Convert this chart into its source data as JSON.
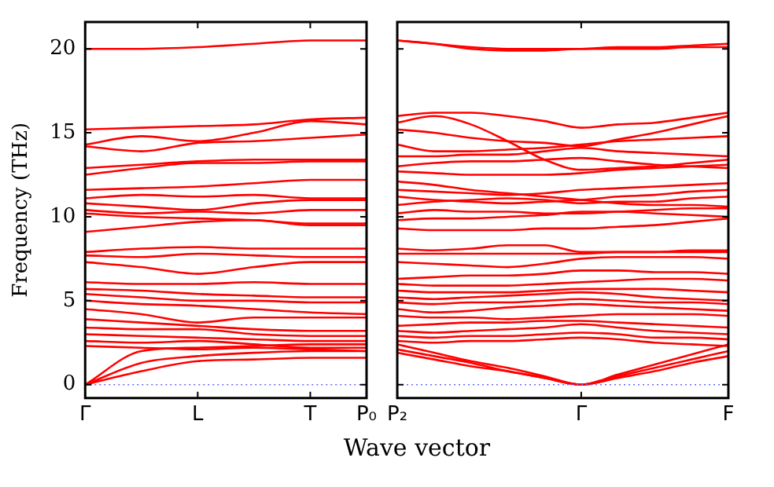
{
  "chart_data": [
    {
      "type": "line",
      "ylabel": "Frequency (THz)",
      "xlabel": "Wave vector",
      "categories": [
        "Γ",
        null,
        "L",
        null,
        "T",
        "P₀"
      ],
      "ylim": [
        -0.8,
        21.6
      ],
      "yticks": [
        0,
        5,
        10,
        15,
        20
      ],
      "grid": false,
      "legend": false,
      "marker": "none",
      "line_style": "solid",
      "ref_lines": [
        {
          "axis": "y",
          "value": 0,
          "color": "#6666ff",
          "line_style": "dotted"
        }
      ],
      "series": [
        {
          "color": "#ff0000",
          "values": [
            20.0,
            20.0,
            20.1,
            20.3,
            20.5,
            20.5
          ]
        },
        {
          "color": "#ff0000",
          "values": [
            15.2,
            15.3,
            15.4,
            15.5,
            15.8,
            15.9
          ]
        },
        {
          "color": "#ff0000",
          "values": [
            14.3,
            14.8,
            14.5,
            15.0,
            15.7,
            15.5
          ]
        },
        {
          "color": "#ff0000",
          "values": [
            14.2,
            13.9,
            14.4,
            14.5,
            14.7,
            14.9
          ]
        },
        {
          "color": "#ff0000",
          "values": [
            12.9,
            13.1,
            13.3,
            13.4,
            13.4,
            13.4
          ]
        },
        {
          "color": "#ff0000",
          "values": [
            12.5,
            12.9,
            13.2,
            13.2,
            13.3,
            13.3
          ]
        },
        {
          "color": "#ff0000",
          "values": [
            11.6,
            11.7,
            11.8,
            12.0,
            12.2,
            12.2
          ]
        },
        {
          "color": "#ff0000",
          "values": [
            11.1,
            11.3,
            11.2,
            11.3,
            11.1,
            11.1
          ]
        },
        {
          "color": "#ff0000",
          "values": [
            10.8,
            10.6,
            10.4,
            10.8,
            11.0,
            11.0
          ]
        },
        {
          "color": "#ff0000",
          "values": [
            10.4,
            10.2,
            10.3,
            10.2,
            10.4,
            10.4
          ]
        },
        {
          "color": "#ff0000",
          "values": [
            10.2,
            10.0,
            9.9,
            9.8,
            9.6,
            9.6
          ]
        },
        {
          "color": "#ff0000",
          "values": [
            9.1,
            9.4,
            9.7,
            9.8,
            9.5,
            9.5
          ]
        },
        {
          "color": "#ff0000",
          "values": [
            7.9,
            8.1,
            8.2,
            8.1,
            8.1,
            8.1
          ]
        },
        {
          "color": "#ff0000",
          "values": [
            7.7,
            7.6,
            7.8,
            7.7,
            7.6,
            7.6
          ]
        },
        {
          "color": "#ff0000",
          "values": [
            7.3,
            7.0,
            6.6,
            7.0,
            7.3,
            7.3
          ]
        },
        {
          "color": "#ff0000",
          "values": [
            6.1,
            6.0,
            6.0,
            6.1,
            6.0,
            6.0
          ]
        },
        {
          "color": "#ff0000",
          "values": [
            5.7,
            5.6,
            5.4,
            5.3,
            5.2,
            5.2
          ]
        },
        {
          "color": "#ff0000",
          "values": [
            5.4,
            5.2,
            5.0,
            5.0,
            4.9,
            4.9
          ]
        },
        {
          "color": "#ff0000",
          "values": [
            5.0,
            4.8,
            4.7,
            4.5,
            4.3,
            4.2
          ]
        },
        {
          "color": "#ff0000",
          "values": [
            4.5,
            4.2,
            3.7,
            4.0,
            4.0,
            4.0
          ]
        },
        {
          "color": "#ff0000",
          "values": [
            3.9,
            3.7,
            3.5,
            3.3,
            3.2,
            3.2
          ]
        },
        {
          "color": "#ff0000",
          "values": [
            3.4,
            3.3,
            3.3,
            3.0,
            2.9,
            2.9
          ]
        },
        {
          "color": "#ff0000",
          "values": [
            3.0,
            2.9,
            2.8,
            2.7,
            2.6,
            2.6
          ]
        },
        {
          "color": "#ff0000",
          "values": [
            2.6,
            2.5,
            2.6,
            2.4,
            2.2,
            2.2
          ]
        },
        {
          "color": "#ff0000",
          "values": [
            2.3,
            2.2,
            2.1,
            2.2,
            2.1,
            2.0
          ]
        },
        {
          "color": "#ff0000",
          "values": [
            0,
            2.0,
            2.2,
            2.3,
            2.4,
            2.4
          ]
        },
        {
          "color": "#ff0000",
          "values": [
            0,
            1.3,
            1.7,
            1.9,
            2.0,
            2.0
          ]
        },
        {
          "color": "#ff0000",
          "values": [
            0,
            0.8,
            1.4,
            1.5,
            1.6,
            1.6
          ]
        }
      ]
    },
    {
      "type": "line",
      "categories": [
        "P₂",
        null,
        null,
        null,
        null,
        "Γ",
        null,
        null,
        null,
        "F"
      ],
      "ylim": [
        -0.8,
        21.6
      ],
      "yticks": [
        {
          "value": 0,
          "label": null
        },
        {
          "value": 5,
          "label": null
        },
        {
          "value": 10,
          "label": null
        },
        {
          "value": 15,
          "label": null
        },
        {
          "value": 20,
          "label": null
        }
      ],
      "tick_labels": "x",
      "grid": false,
      "legend": false,
      "marker": "none",
      "line_style": "solid",
      "ref_lines": [
        {
          "axis": "y",
          "value": 0,
          "color": "#6666ff",
          "line_style": "dotted"
        }
      ],
      "series": [
        {
          "color": "#ff0000",
          "values": [
            20.5,
            20.3,
            20.0,
            19.9,
            19.9,
            20.0,
            20.0,
            20.0,
            20.1,
            20.1
          ]
        },
        {
          "color": "#ff0000",
          "values": [
            20.5,
            20.3,
            20.1,
            20.0,
            20.0,
            20.0,
            20.1,
            20.1,
            20.2,
            20.3
          ]
        },
        {
          "color": "#ff0000",
          "values": [
            16.0,
            16.2,
            16.2,
            16.0,
            15.7,
            15.3,
            15.5,
            15.6,
            15.9,
            16.2
          ]
        },
        {
          "color": "#ff0000",
          "values": [
            15.6,
            16.0,
            15.5,
            14.5,
            13.4,
            12.8,
            12.9,
            13.0,
            13.2,
            13.4
          ]
        },
        {
          "color": "#ff0000",
          "values": [
            15.2,
            15.0,
            14.7,
            14.5,
            14.4,
            14.2,
            14.6,
            15.0,
            15.5,
            16.0
          ]
        },
        {
          "color": "#ff0000",
          "values": [
            14.3,
            13.9,
            13.9,
            14.0,
            14.1,
            14.3,
            14.5,
            14.6,
            14.7,
            14.8
          ]
        },
        {
          "color": "#ff0000",
          "values": [
            13.6,
            13.6,
            13.7,
            13.7,
            13.9,
            14.1,
            13.9,
            13.8,
            13.7,
            13.6
          ]
        },
        {
          "color": "#ff0000",
          "values": [
            13.0,
            13.2,
            13.3,
            13.3,
            13.4,
            13.5,
            13.3,
            13.1,
            13.0,
            12.9
          ]
        },
        {
          "color": "#ff0000",
          "values": [
            12.7,
            12.6,
            12.5,
            12.5,
            12.5,
            12.6,
            12.8,
            12.9,
            13.0,
            13.1
          ]
        },
        {
          "color": "#ff0000",
          "values": [
            12.1,
            11.9,
            11.6,
            11.4,
            11.2,
            11.0,
            10.8,
            10.7,
            10.7,
            10.6
          ]
        },
        {
          "color": "#ff0000",
          "values": [
            11.6,
            11.5,
            11.4,
            11.3,
            11.4,
            11.6,
            11.7,
            11.8,
            11.9,
            12.0
          ]
        },
        {
          "color": "#ff0000",
          "values": [
            11.2,
            11.0,
            10.9,
            10.8,
            10.9,
            11.0,
            11.2,
            11.3,
            11.5,
            11.6
          ]
        },
        {
          "color": "#ff0000",
          "values": [
            10.7,
            10.9,
            11.0,
            11.1,
            11.0,
            10.8,
            10.9,
            10.9,
            11.1,
            11.2
          ]
        },
        {
          "color": "#ff0000",
          "values": [
            10.2,
            10.4,
            10.3,
            10.3,
            10.2,
            10.2,
            10.3,
            10.4,
            10.5,
            10.5
          ]
        },
        {
          "color": "#ff0000",
          "values": [
            9.8,
            9.9,
            9.9,
            10.0,
            10.1,
            10.3,
            10.3,
            10.2,
            10.1,
            10.0
          ]
        },
        {
          "color": "#ff0000",
          "values": [
            9.3,
            9.2,
            9.2,
            9.2,
            9.3,
            9.3,
            9.4,
            9.5,
            9.7,
            9.9
          ]
        },
        {
          "color": "#ff0000",
          "values": [
            8.1,
            8.0,
            8.1,
            8.3,
            8.3,
            7.9,
            7.9,
            7.9,
            8.0,
            8.0
          ]
        },
        {
          "color": "#ff0000",
          "values": [
            7.8,
            7.8,
            7.8,
            7.8,
            7.8,
            7.8,
            7.9,
            7.9,
            7.9,
            7.9
          ]
        },
        {
          "color": "#ff0000",
          "values": [
            7.3,
            7.2,
            7.1,
            7.0,
            7.2,
            7.5,
            7.6,
            7.6,
            7.6,
            7.5
          ]
        },
        {
          "color": "#ff0000",
          "values": [
            6.3,
            6.4,
            6.5,
            6.5,
            6.6,
            6.8,
            6.8,
            6.7,
            6.7,
            6.6
          ]
        },
        {
          "color": "#ff0000",
          "values": [
            6.0,
            5.9,
            5.9,
            5.9,
            6.0,
            6.1,
            6.2,
            6.3,
            6.3,
            6.2
          ]
        },
        {
          "color": "#ff0000",
          "values": [
            5.6,
            5.5,
            5.5,
            5.5,
            5.6,
            5.7,
            5.7,
            5.7,
            5.6,
            5.5
          ]
        },
        {
          "color": "#ff0000",
          "values": [
            5.2,
            5.1,
            5.2,
            5.3,
            5.4,
            5.5,
            5.4,
            5.2,
            5.1,
            5.0
          ]
        },
        {
          "color": "#ff0000",
          "values": [
            4.9,
            4.8,
            4.9,
            4.9,
            5.0,
            5.1,
            5.0,
            4.9,
            4.9,
            4.8
          ]
        },
        {
          "color": "#ff0000",
          "values": [
            4.5,
            4.3,
            4.4,
            4.6,
            4.7,
            4.8,
            4.7,
            4.6,
            4.5,
            4.4
          ]
        },
        {
          "color": "#ff0000",
          "values": [
            4.1,
            4.0,
            4.0,
            3.9,
            4.0,
            4.1,
            4.2,
            4.2,
            4.2,
            4.1
          ]
        },
        {
          "color": "#ff0000",
          "values": [
            3.5,
            3.6,
            3.7,
            3.7,
            3.8,
            3.8,
            3.7,
            3.6,
            3.5,
            3.4
          ]
        },
        {
          "color": "#ff0000",
          "values": [
            3.2,
            3.1,
            3.2,
            3.3,
            3.4,
            3.6,
            3.4,
            3.2,
            3.1,
            3.0
          ]
        },
        {
          "color": "#ff0000",
          "values": [
            2.9,
            2.8,
            2.9,
            2.9,
            3.0,
            3.1,
            3.0,
            2.8,
            2.8,
            2.7
          ]
        },
        {
          "color": "#ff0000",
          "values": [
            2.6,
            2.5,
            2.6,
            2.6,
            2.7,
            2.8,
            2.7,
            2.5,
            2.4,
            2.3
          ]
        },
        {
          "color": "#ff0000",
          "values": [
            2.4,
            1.9,
            1.4,
            1.0,
            0.5,
            0,
            0.6,
            1.2,
            1.8,
            2.4
          ]
        },
        {
          "color": "#ff0000",
          "values": [
            2.1,
            1.7,
            1.3,
            0.8,
            0.4,
            0,
            0.5,
            1.0,
            1.5,
            2.0
          ]
        },
        {
          "color": "#ff0000",
          "values": [
            1.9,
            1.5,
            1.1,
            0.8,
            0.4,
            0,
            0.4,
            0.8,
            1.3,
            1.7
          ]
        }
      ]
    }
  ]
}
